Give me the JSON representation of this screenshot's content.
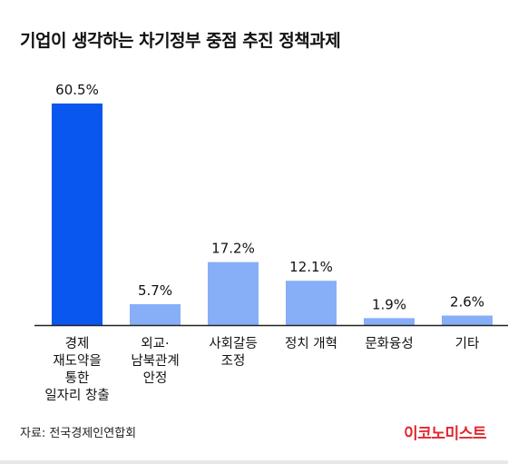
{
  "title": "기업이 생각하는 차기정부 중점 추진 정책과제",
  "source": "자료: 전국경제인연합회",
  "brand": "이코노미스트",
  "colors": {
    "highlight": "#0a57f0",
    "bar": "#87aff8",
    "baseline": "#222222"
  },
  "chart_data": {
    "type": "bar",
    "title": "기업이 생각하는 차기정부 중점 추진 정책과제",
    "categories": [
      [
        "경제",
        "재도약을",
        "통한",
        "일자리 창출"
      ],
      [
        "외교·",
        "남북관계",
        "안정"
      ],
      [
        "사회갈등",
        "조정"
      ],
      [
        "정치 개혁"
      ],
      [
        "문화융성"
      ],
      [
        "기타"
      ]
    ],
    "values": [
      60.5,
      5.7,
      17.2,
      12.1,
      1.9,
      2.6
    ],
    "value_labels": [
      "60.5%",
      "5.7%",
      "17.2%",
      "12.1%",
      "1.9%",
      "2.6%"
    ],
    "unit": "%",
    "highlight_index": 0,
    "ylim": [
      0,
      60.5
    ],
    "grid": false,
    "legend": "none"
  }
}
